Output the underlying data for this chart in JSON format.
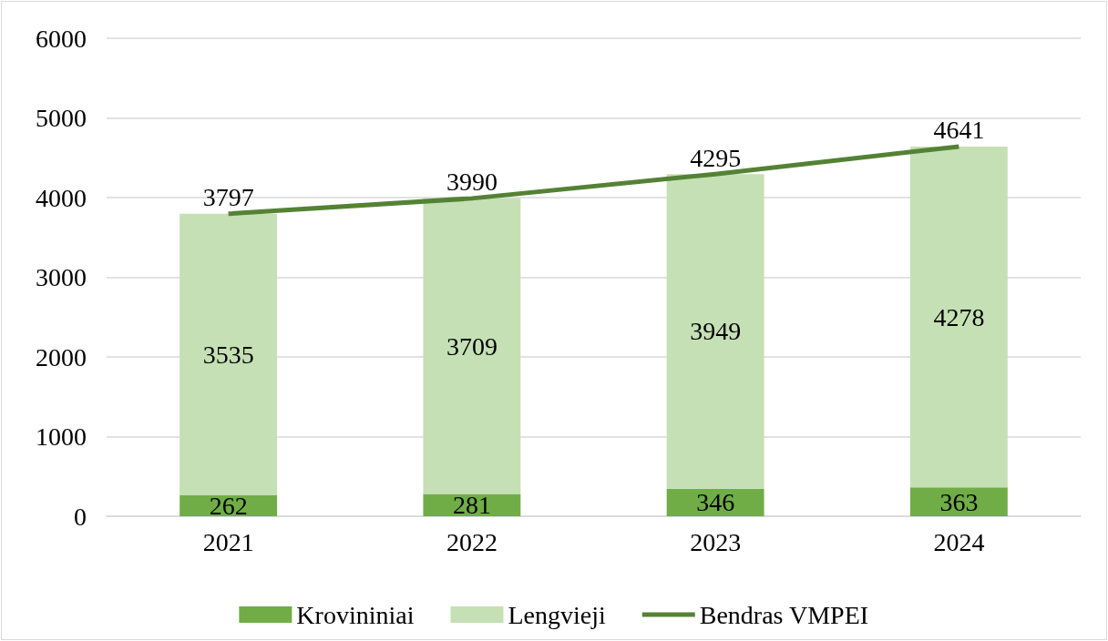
{
  "chart_data": {
    "type": "bar",
    "categories": [
      "2021",
      "2022",
      "2023",
      "2024"
    ],
    "series": [
      {
        "name": "Krovininiai",
        "color": "#70ad47",
        "values": [
          262,
          281,
          346,
          363
        ]
      },
      {
        "name": "Lengvieji",
        "color": "#c5e0b4",
        "values": [
          3535,
          3709,
          3949,
          4278
        ]
      },
      {
        "name": "Bendras VMPEI",
        "type": "line",
        "color": "#548235",
        "values": [
          3797,
          3990,
          4295,
          4641
        ],
        "marker": "none"
      }
    ],
    "stacked": true,
    "ylim": [
      0,
      6000
    ],
    "yticks": [
      0,
      1000,
      2000,
      3000,
      4000,
      5000,
      6000
    ],
    "grid": "y",
    "legend": "bottom",
    "data_labels": true
  }
}
